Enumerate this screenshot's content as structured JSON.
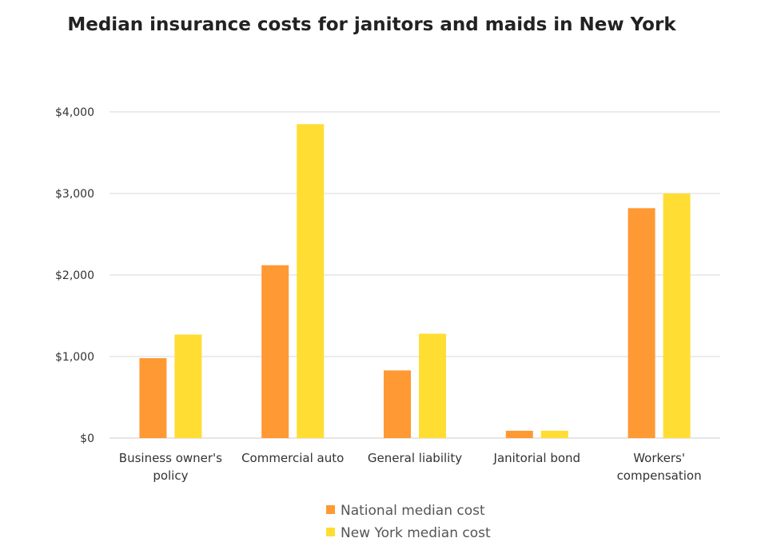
{
  "chart_data": {
    "type": "bar",
    "title": "Median insurance costs for janitors and maids in New York",
    "xlabel": "",
    "ylabel": "",
    "ylim": [
      0,
      4000
    ],
    "yticks": [
      0,
      1000,
      2000,
      3000,
      4000
    ],
    "ytick_labels": [
      "$0",
      "$1,000",
      "$2,000",
      "$3,000",
      "$4,000"
    ],
    "categories": [
      [
        "Business owner's",
        "policy"
      ],
      [
        "Commercial auto"
      ],
      [
        "General liability"
      ],
      [
        "Janitorial bond"
      ],
      [
        "Workers'",
        "compensation"
      ]
    ],
    "series": [
      {
        "name": "National median cost",
        "color": "#FF9933",
        "values": [
          980,
          2120,
          830,
          90,
          2820
        ]
      },
      {
        "name": "New York median cost",
        "color": "#FFDD33",
        "values": [
          1270,
          3850,
          1280,
          90,
          3000
        ]
      }
    ],
    "grid": true,
    "legend": "bottom"
  }
}
